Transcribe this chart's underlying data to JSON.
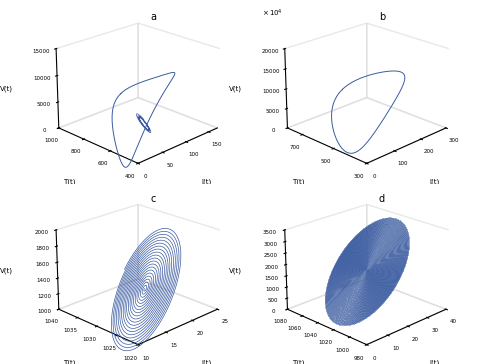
{
  "fig_width": 5.0,
  "fig_height": 3.64,
  "dpi": 100,
  "line_color": "#3A5BA0",
  "background": "#ffffff",
  "panels": [
    "a",
    "b",
    "c",
    "d"
  ]
}
